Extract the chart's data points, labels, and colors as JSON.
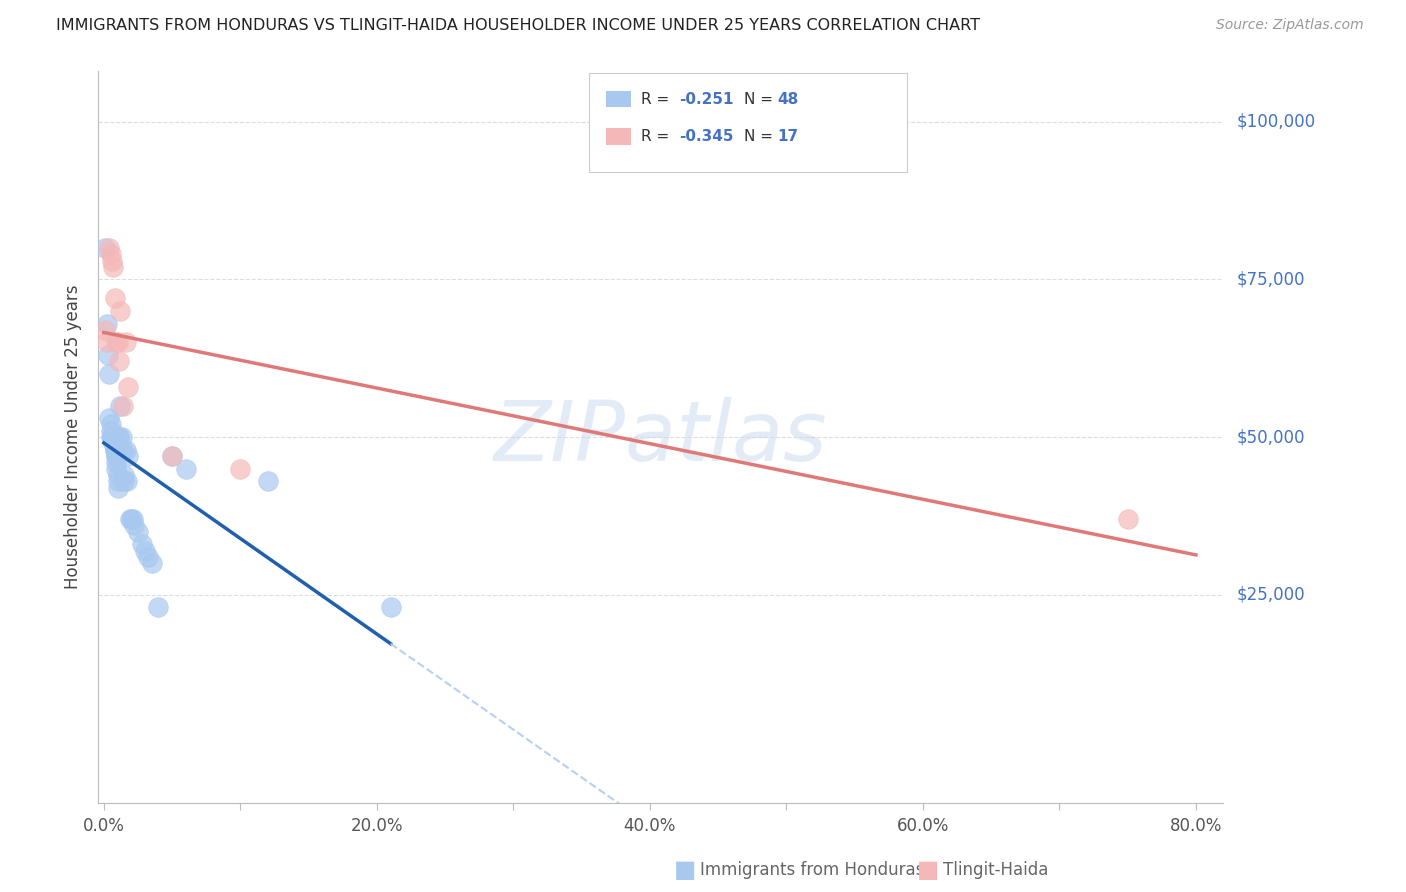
{
  "title": "IMMIGRANTS FROM HONDURAS VS TLINGIT-HAIDA HOUSEHOLDER INCOME UNDER 25 YEARS CORRELATION CHART",
  "source": "Source: ZipAtlas.com",
  "ylabel": "Householder Income Under 25 years",
  "xlim": [
    -0.004,
    0.82
  ],
  "ylim": [
    -8000,
    108000
  ],
  "blue_color": "#A8C8F0",
  "pink_color": "#F4B8B8",
  "trend_blue": "#1F5FAD",
  "trend_pink": "#E07878",
  "dashed_blue": "#A8C8F0",
  "right_label_color": "#4472C4",
  "grid_color": "#DDDDDD",
  "watermark_color": "#C8D8EE",
  "xtick_vals": [
    0.0,
    0.1,
    0.2,
    0.3,
    0.4,
    0.5,
    0.6,
    0.7,
    0.8
  ],
  "xtick_labels": [
    "0.0%",
    "",
    "20.0%",
    "",
    "40.0%",
    "",
    "60.0%",
    "",
    "80.0%"
  ],
  "ytick_right_labels": [
    "$100,000",
    "$75,000",
    "$50,000",
    "$25,000"
  ],
  "ytick_right_vals": [
    100000,
    75000,
    50000,
    25000
  ],
  "hgrid_vals": [
    25000,
    50000,
    75000,
    100000
  ],
  "blue_x": [
    0.001,
    0.002,
    0.003,
    0.004,
    0.004,
    0.005,
    0.005,
    0.005,
    0.006,
    0.006,
    0.006,
    0.007,
    0.007,
    0.007,
    0.008,
    0.008,
    0.008,
    0.009,
    0.009,
    0.009,
    0.009,
    0.01,
    0.01,
    0.01,
    0.011,
    0.011,
    0.012,
    0.013,
    0.014,
    0.015,
    0.015,
    0.016,
    0.017,
    0.018,
    0.019,
    0.02,
    0.021,
    0.022,
    0.025,
    0.028,
    0.03,
    0.032,
    0.035,
    0.04,
    0.05,
    0.06,
    0.12,
    0.21
  ],
  "blue_y": [
    80000,
    68000,
    63000,
    60000,
    53000,
    52000,
    51000,
    50000,
    50000,
    50000,
    50000,
    50000,
    50000,
    49000,
    49000,
    48000,
    48000,
    47000,
    47000,
    46000,
    45000,
    44000,
    43000,
    42000,
    50000,
    50000,
    55000,
    50000,
    48000,
    44000,
    43000,
    48000,
    43000,
    47000,
    37000,
    37000,
    37000,
    36000,
    35000,
    33000,
    32000,
    31000,
    30000,
    23000,
    47000,
    45000,
    43000,
    23000
  ],
  "pink_x": [
    0.001,
    0.002,
    0.004,
    0.005,
    0.006,
    0.007,
    0.008,
    0.009,
    0.01,
    0.011,
    0.012,
    0.014,
    0.016,
    0.018,
    0.05,
    0.1,
    0.75
  ],
  "pink_y": [
    67000,
    65000,
    80000,
    79000,
    78000,
    77000,
    72000,
    65000,
    65000,
    62000,
    70000,
    55000,
    65000,
    58000,
    47000,
    45000,
    37000
  ]
}
